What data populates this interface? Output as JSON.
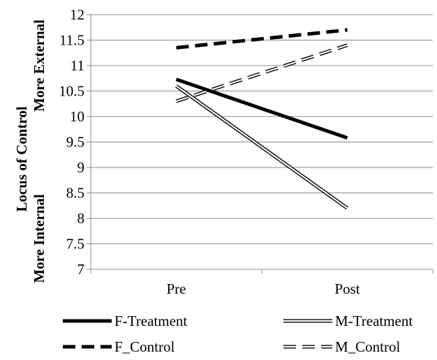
{
  "chart_data": {
    "type": "line",
    "title": "",
    "ylabel": {
      "main": "Locus of Control",
      "top": "More External",
      "bottom": "More Internal"
    },
    "categories": [
      "Pre",
      "Post"
    ],
    "ylim": [
      7,
      12
    ],
    "yticks": [
      "7",
      "7.5",
      "8",
      "8.5",
      "9",
      "9.5",
      "10",
      "10.5",
      "11",
      "11.5",
      "12"
    ],
    "grid": true,
    "legend_position": "bottom",
    "series": [
      {
        "name": "F-Treatment",
        "values": [
          10.73,
          9.58
        ],
        "style": "thick-solid",
        "color": "#000000"
      },
      {
        "name": "M-Treatment",
        "values": [
          10.6,
          8.2
        ],
        "style": "double-outline",
        "color": "#000000"
      },
      {
        "name": "F_Control",
        "values": [
          11.35,
          11.7
        ],
        "style": "thick-dashed",
        "color": "#000000"
      },
      {
        "name": "M_Control",
        "values": [
          10.3,
          11.4
        ],
        "style": "outline-dashed",
        "color": "#000000"
      }
    ]
  }
}
